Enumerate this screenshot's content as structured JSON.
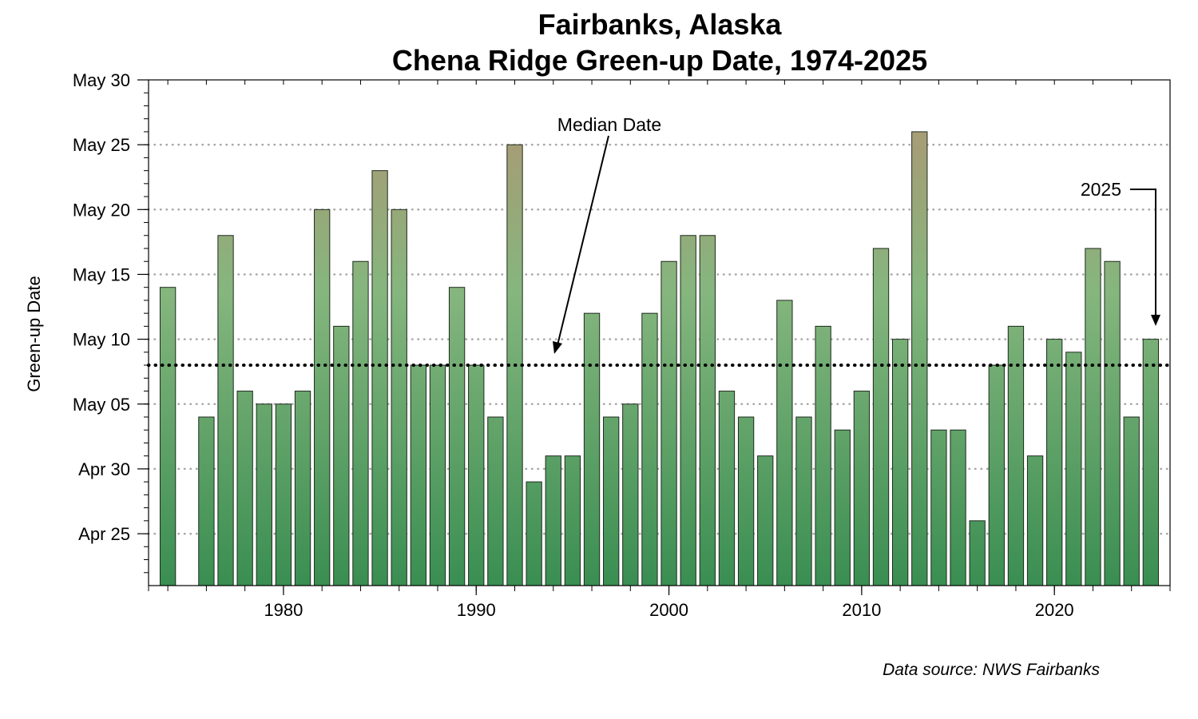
{
  "chart_data": {
    "type": "bar",
    "title": "Fairbanks, Alaska",
    "subtitle": "Chena Ridge Green-up Date, 1974-2025",
    "ylabel": "Green-up Date",
    "xlabel": "",
    "x_ticks": [
      "1980",
      "1990",
      "2000",
      "2010",
      "2020"
    ],
    "y_ticks": [
      "May 30",
      "May 25",
      "May 20",
      "May 15",
      "May 10",
      "May 05",
      "Apr 30",
      "Apr 25"
    ],
    "y_unit": "calendar date (day of year)",
    "ylim": [
      "Apr 21",
      "May 30"
    ],
    "xlim": [
      1973,
      2026
    ],
    "grid": true,
    "median": {
      "label": "Median Date",
      "value": "May 08"
    },
    "highlight": {
      "label": "2025",
      "year": 2025
    },
    "source": "Data source: NWS Fairbanks",
    "colors": {
      "bar_top_late": "#a89a74",
      "bar_mid": "#85b67e",
      "bar_bottom": "#3a8e52"
    },
    "series": [
      {
        "x": [
          1974,
          1975,
          1976,
          1977,
          1978,
          1979,
          1980,
          1981,
          1982,
          1983,
          1984,
          1985,
          1986,
          1987,
          1988,
          1989,
          1990,
          1991,
          1992,
          1993,
          1994,
          1995,
          1996,
          1997,
          1998,
          1999,
          2000,
          2001,
          2002,
          2003,
          2004,
          2005,
          2006,
          2007,
          2008,
          2009,
          2010,
          2011,
          2012,
          2013,
          2014,
          2015,
          2016,
          2017,
          2018,
          2019,
          2020,
          2021,
          2022,
          2023,
          2024,
          2025
        ],
        "values": [
          "May 14",
          null,
          "May 04",
          "May 18",
          "May 06",
          "May 05",
          "May 05",
          "May 06",
          "May 20",
          "May 11",
          "May 16",
          "May 23",
          "May 20",
          "May 08",
          "May 08",
          "May 14",
          "May 08",
          "May 04",
          "May 25",
          "Apr 29",
          "May 01",
          "May 01",
          "May 12",
          "May 04",
          "May 05",
          "May 12",
          "May 16",
          "May 18",
          "May 18",
          "May 06",
          "May 04",
          "May 01",
          "May 13",
          "May 04",
          "May 11",
          "May 03",
          "May 06",
          "May 17",
          "May 10",
          "May 26",
          "May 03",
          "May 03",
          "Apr 26",
          "May 08",
          "May 11",
          "May 01",
          "May 10",
          "May 09",
          "May 17",
          "May 16",
          "May 04",
          "May 10"
        ]
      }
    ]
  }
}
